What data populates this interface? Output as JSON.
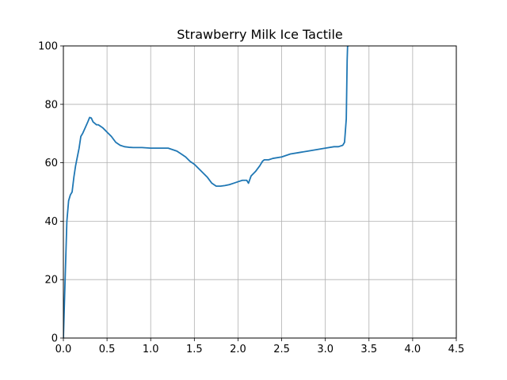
{
  "chart_data": {
    "type": "line",
    "title": "Strawberry Milk Ice Tactile",
    "xlabel": "",
    "ylabel": "",
    "xlim": [
      0,
      4.5
    ],
    "ylim": [
      0,
      100
    ],
    "grid": true,
    "x_ticks": [
      0.0,
      0.5,
      1.0,
      1.5,
      2.0,
      2.5,
      3.0,
      3.5,
      4.0,
      4.5
    ],
    "x_tick_labels": [
      "0.0",
      "0.5",
      "1.0",
      "1.5",
      "2.0",
      "2.5",
      "3.0",
      "3.5",
      "4.0",
      "4.5"
    ],
    "y_ticks": [
      0,
      20,
      40,
      60,
      80,
      100
    ],
    "y_tick_labels": [
      "0",
      "20",
      "40",
      "60",
      "80",
      "100"
    ],
    "line_color": "#1f77b4",
    "series": [
      {
        "x": [
          0.0,
          0.02,
          0.04,
          0.06,
          0.08,
          0.1,
          0.12,
          0.14,
          0.16,
          0.18,
          0.2,
          0.22,
          0.25,
          0.28,
          0.3,
          0.32,
          0.34,
          0.36,
          0.38,
          0.4,
          0.45,
          0.5,
          0.55,
          0.6,
          0.65,
          0.7,
          0.75,
          0.8,
          0.9,
          1.0,
          1.1,
          1.2,
          1.3,
          1.35,
          1.4,
          1.45,
          1.5,
          1.55,
          1.6,
          1.65,
          1.7,
          1.75,
          1.8,
          1.85,
          1.9,
          1.95,
          2.0,
          2.05,
          2.1,
          2.12,
          2.15,
          2.2,
          2.25,
          2.28,
          2.3,
          2.35,
          2.4,
          2.5,
          2.6,
          2.7,
          2.8,
          2.9,
          3.0,
          3.1,
          3.15,
          3.2,
          3.22,
          3.24,
          3.245,
          3.25,
          3.255,
          3.26,
          3.265
        ],
        "y": [
          0,
          20,
          40,
          47,
          49,
          50,
          55,
          59,
          62,
          65,
          69,
          70,
          72,
          74,
          75.5,
          75.3,
          74,
          73.5,
          73,
          73,
          72,
          70.5,
          69,
          67,
          66,
          65.5,
          65.3,
          65.2,
          65.2,
          65,
          65,
          65,
          64,
          63,
          62,
          60.5,
          59.5,
          58,
          56.5,
          55,
          53,
          52,
          52,
          52.2,
          52.5,
          53,
          53.5,
          54,
          54,
          53,
          55.5,
          57,
          59,
          60.5,
          61,
          61,
          61.5,
          62,
          63,
          63.5,
          64,
          64.5,
          65,
          65.5,
          65.5,
          66,
          67,
          75,
          85,
          95,
          100,
          100,
          100
        ]
      }
    ]
  }
}
